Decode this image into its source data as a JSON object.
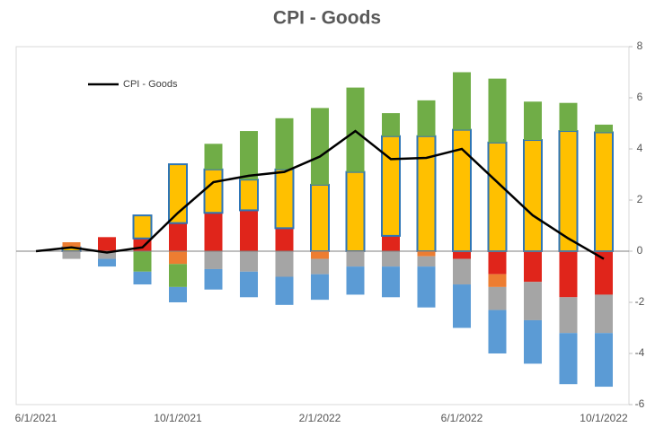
{
  "chart_data": {
    "type": "bar",
    "title": "CPI - Goods",
    "categories": [
      "6/1/2021",
      null,
      null,
      null,
      "10/1/2021",
      null,
      null,
      null,
      "2/1/2022",
      null,
      null,
      null,
      "6/1/2022",
      null,
      null,
      null,
      "10/1/2022"
    ],
    "ylim": [
      -6,
      8
    ],
    "yticks": [
      -6,
      -4,
      -2,
      0,
      2,
      4,
      6,
      8
    ],
    "series": [
      {
        "color": "#e0251b",
        "values": [
          null,
          0,
          0.55,
          0.5,
          1.1,
          1.5,
          1.6,
          0.9,
          0,
          0,
          0.6,
          0,
          -0.3,
          -0.9,
          -1.2,
          -1.8,
          -1.7
        ]
      },
      {
        "color": "#ffc000",
        "stroke": "#2e75b6",
        "values": [
          null,
          0.15,
          0,
          0.9,
          2.3,
          1.7,
          1.2,
          2.3,
          2.6,
          3.1,
          3.9,
          4.5,
          4.75,
          4.25,
          4.35,
          4.7,
          4.65
        ]
      },
      {
        "color": "#ed7d31",
        "values": [
          null,
          0.2,
          0,
          0,
          -0.5,
          0,
          0,
          0,
          -0.3,
          0,
          0,
          -0.2,
          0,
          -0.5,
          0,
          0,
          0
        ]
      },
      {
        "color": "#70ad47",
        "values": [
          null,
          0,
          0,
          -0.8,
          -0.9,
          1.0,
          1.9,
          2.0,
          3.0,
          3.3,
          0.9,
          1.4,
          2.25,
          2.5,
          1.5,
          1.1,
          0.3
        ]
      },
      {
        "color": "#a5a5a5",
        "values": [
          null,
          -0.3,
          -0.3,
          0,
          0,
          -0.7,
          -0.8,
          -1.0,
          -0.6,
          -0.6,
          -0.6,
          -0.4,
          -1.0,
          -0.9,
          -1.5,
          -1.4,
          -1.5
        ]
      },
      {
        "color": "#5b9bd5",
        "values": [
          null,
          0,
          -0.3,
          -0.5,
          -0.6,
          -0.8,
          -1.0,
          -1.1,
          -1.0,
          -1.1,
          -1.2,
          -1.6,
          -1.7,
          -1.7,
          -1.7,
          -2.0,
          -2.1
        ]
      },
      {
        "type": "line",
        "name": "CPI - Goods",
        "color": "#000000",
        "values": [
          0,
          0.15,
          -0.05,
          0.15,
          1.5,
          2.7,
          2.95,
          3.1,
          3.7,
          4.7,
          3.6,
          3.65,
          4.0,
          2.7,
          1.4,
          0.5,
          -0.3
        ]
      }
    ]
  }
}
